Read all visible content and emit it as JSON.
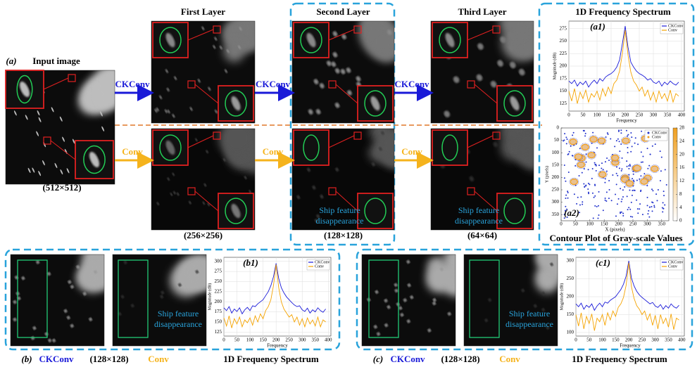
{
  "figure_a": {
    "label": "(a)",
    "input_title": "Input image",
    "input_size": "(512×512)",
    "layers": [
      {
        "title": "First Layer",
        "size": "(256×256)"
      },
      {
        "title": "Second Layer",
        "size": "(128×128)"
      },
      {
        "title": "Third Layer",
        "size": "(64×64)"
      }
    ],
    "ckconv_arrows": [
      "CKConv",
      "CKConv",
      "CKConv"
    ],
    "conv_arrows": [
      "Conv",
      "Conv",
      "Conv"
    ],
    "notes": [
      {
        "lines": [
          "Ship feature",
          "disappearance"
        ]
      },
      {
        "lines": [
          "Ship feature",
          "disappearance"
        ]
      }
    ]
  },
  "chart_data": [
    {
      "type": "line",
      "title": "1D Frequency Spectrum",
      "label": "(a1)",
      "xlabel": "Frequency",
      "ylabel": "Magnitude (dB)",
      "x": [
        0,
        10,
        20,
        30,
        40,
        50,
        60,
        70,
        80,
        90,
        100,
        110,
        120,
        130,
        140,
        150,
        160,
        170,
        180,
        190,
        200,
        210,
        220,
        230,
        240,
        250,
        260,
        270,
        280,
        290,
        300,
        310,
        320,
        330,
        340,
        350,
        360,
        370,
        380,
        390
      ],
      "series": [
        {
          "name": "CKConv",
          "color": "#1a1ad8",
          "values": [
            170,
            165,
            172,
            160,
            168,
            163,
            170,
            158,
            166,
            172,
            165,
            175,
            170,
            178,
            182,
            185,
            190,
            198,
            212,
            245,
            280,
            238,
            208,
            198,
            190,
            185,
            182,
            178,
            172,
            175,
            168,
            165,
            170,
            160,
            168,
            163,
            170,
            165,
            162,
            168
          ]
        },
        {
          "name": "Conv",
          "color": "#f5a300",
          "values": [
            150,
            130,
            155,
            125,
            148,
            135,
            152,
            128,
            145,
            138,
            150,
            132,
            155,
            140,
            158,
            145,
            165,
            172,
            190,
            225,
            272,
            222,
            188,
            170,
            162,
            150,
            158,
            140,
            152,
            132,
            148,
            128,
            150,
            135,
            145,
            130,
            152,
            128,
            145,
            140
          ]
        }
      ],
      "xlim": [
        0,
        410
      ],
      "ylim": [
        110,
        290
      ],
      "xticks": [
        0,
        50,
        100,
        150,
        200,
        250,
        300,
        350,
        400
      ],
      "yticks": [
        125,
        150,
        175,
        200,
        225,
        250,
        275
      ],
      "grid": true
    },
    {
      "type": "line",
      "label": "(b1)",
      "xlabel": "Frequency",
      "ylabel": "Magnitude (dB)",
      "x": [
        0,
        10,
        20,
        30,
        40,
        50,
        60,
        70,
        80,
        90,
        100,
        110,
        120,
        130,
        140,
        150,
        160,
        170,
        180,
        190,
        200,
        210,
        220,
        230,
        240,
        250,
        260,
        270,
        280,
        290,
        300,
        310,
        320,
        330,
        340,
        350,
        360,
        370,
        380,
        390
      ],
      "series": [
        {
          "name": "CKConv",
          "color": "#1a1ad8",
          "values": [
            185,
            178,
            188,
            172,
            182,
            176,
            185,
            170,
            180,
            186,
            178,
            190,
            188,
            195,
            200,
            205,
            215,
            225,
            240,
            262,
            295,
            258,
            235,
            222,
            212,
            205,
            198,
            192,
            188,
            190,
            180,
            176,
            184,
            172,
            180,
            175,
            185,
            178,
            174,
            182
          ]
        },
        {
          "name": "Conv",
          "color": "#f5a300",
          "values": [
            160,
            140,
            165,
            135,
            158,
            145,
            162,
            138,
            155,
            148,
            160,
            142,
            165,
            150,
            170,
            158,
            178,
            188,
            205,
            240,
            292,
            235,
            200,
            182,
            172,
            162,
            168,
            150,
            162,
            142,
            158,
            138,
            160,
            145,
            155,
            140,
            162,
            138,
            155,
            150
          ]
        }
      ],
      "xlim": [
        0,
        410
      ],
      "ylim": [
        115,
        310
      ],
      "xticks": [
        0,
        50,
        100,
        150,
        200,
        250,
        300,
        350,
        400
      ],
      "yticks": [
        125,
        150,
        175,
        200,
        225,
        250,
        275,
        300
      ],
      "grid": true
    },
    {
      "type": "line",
      "label": "(c1)",
      "xlabel": "Frequency",
      "ylabel": "Magnitude (dB)",
      "x": [
        0,
        10,
        20,
        30,
        40,
        50,
        60,
        70,
        80,
        90,
        100,
        110,
        120,
        130,
        140,
        150,
        160,
        170,
        180,
        190,
        200,
        210,
        220,
        230,
        240,
        250,
        260,
        270,
        280,
        290,
        300,
        310,
        320,
        330,
        340,
        350,
        360,
        370,
        380,
        390
      ],
      "series": [
        {
          "name": "CKConv",
          "color": "#1a1ad8",
          "values": [
            180,
            172,
            182,
            165,
            176,
            170,
            180,
            162,
            174,
            182,
            172,
            185,
            182,
            190,
            195,
            200,
            210,
            220,
            235,
            258,
            300,
            252,
            230,
            215,
            205,
            198,
            192,
            186,
            180,
            184,
            174,
            170,
            178,
            165,
            175,
            168,
            180,
            172,
            168,
            176
          ]
        },
        {
          "name": "Conv",
          "color": "#f5a300",
          "values": [
            150,
            118,
            155,
            110,
            145,
            125,
            152,
            105,
            140,
            130,
            150,
            120,
            155,
            135,
            160,
            145,
            170,
            180,
            198,
            232,
            295,
            228,
            195,
            175,
            165,
            150,
            160,
            135,
            152,
            120,
            148,
            110,
            150,
            125,
            140,
            115,
            152,
            108,
            140,
            135
          ]
        }
      ],
      "xlim": [
        0,
        410
      ],
      "ylim": [
        90,
        310
      ],
      "xticks": [
        0,
        50,
        100,
        150,
        200,
        250,
        300,
        350,
        400
      ],
      "yticks": [
        100,
        150,
        200,
        250,
        300
      ],
      "grid": true
    }
  ],
  "contour_plot": {
    "label": "(a2)",
    "title": "Contour Plot of Gray-scale Values",
    "xlabel": "X (pixels)",
    "ylabel": "Y (pixels)",
    "legend": [
      {
        "name": "CKConv",
        "color": "#2233cc"
      },
      {
        "name": "Conv",
        "color": "#f0a020"
      }
    ],
    "xlim": [
      0,
      375
    ],
    "ylim": [
      0,
      375
    ],
    "xticks": [
      0,
      50,
      100,
      150,
      200,
      250,
      300,
      350
    ],
    "yticks": [
      0,
      50,
      100,
      150,
      200,
      250,
      300,
      350
    ],
    "colorbar_lim": [
      0,
      28
    ],
    "colorbar_ticks": [
      0,
      4,
      8,
      12,
      16,
      20,
      24,
      28
    ]
  },
  "panel_b": {
    "label": "(b)",
    "ckconv": "CKConv",
    "size": "(128×128)",
    "conv": "Conv",
    "spectrum": "1D Frequency Spectrum",
    "note": {
      "lines": [
        "Ship feature",
        "disappearance"
      ]
    }
  },
  "panel_c": {
    "label": "(c)",
    "ckconv": "CKConv",
    "size": "(128×128)",
    "conv": "Conv",
    "spectrum": "1D Frequency Spectrum",
    "note": {
      "lines": [
        "Ship feature",
        "disappearance"
      ]
    }
  }
}
